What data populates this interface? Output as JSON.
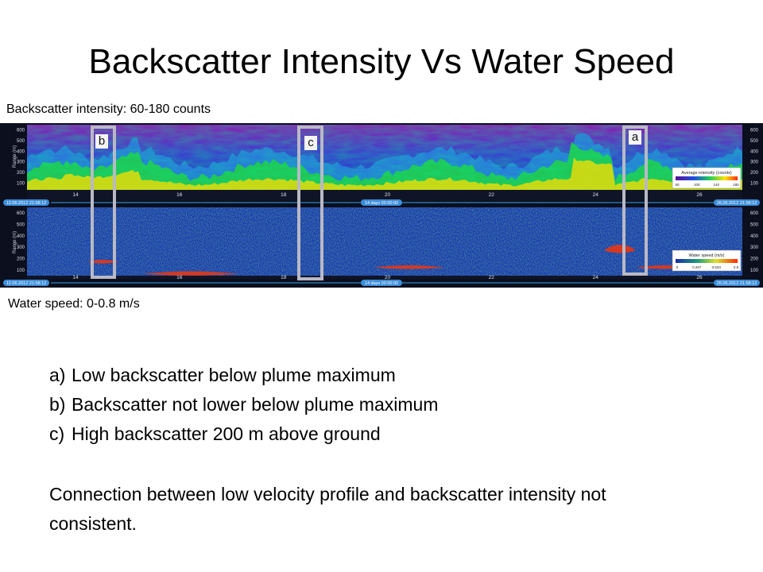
{
  "slide": {
    "title": "Backscatter Intensity Vs Water Speed",
    "caption_top": "Backscatter intensity: 60-180  counts",
    "caption_bottom": "Water speed: 0-0.8 m/s",
    "notes": [
      {
        "letter": "a)",
        "text": "Low backscatter below plume maximum"
      },
      {
        "letter": "b)",
        "text": "Backscatter not lower below plume maximum"
      },
      {
        "letter": "c)",
        "text": "High backscatter 200 m above ground"
      }
    ],
    "conclusion": "Connection between low velocity profile and backscatter intensity not consistent."
  },
  "markers": [
    {
      "label": "b"
    },
    {
      "label": "c"
    },
    {
      "label": "a"
    }
  ],
  "figure": {
    "range_ticks": [
      "600",
      "500",
      "400",
      "300",
      "200",
      "100"
    ],
    "range_axis_label": "Range (m)",
    "day_ticks": [
      "14",
      "16",
      "18",
      "20",
      "22",
      "24",
      "26"
    ],
    "start_date": "12.06.2012 21:58:12",
    "end_date": "26.06.2012 21:58:12",
    "span": "14 days 00:00:00",
    "top_panel": {
      "legend_title": "Average intensity (counts)",
      "legend_ticks": [
        "60",
        "100",
        "140",
        "180"
      ],
      "colors": {
        "background": "#8a1fb0",
        "surface": "#1a40c8",
        "plume": "#22cc44",
        "peak": "#ffdd00",
        "max": "#ff3300"
      }
    },
    "bottom_panel": {
      "legend_title": "Water speed (m/s)",
      "legend_ticks": [
        "0",
        "0.267",
        "0.533",
        "0.8"
      ],
      "colors": {
        "background": "#1a2bb0",
        "mid": "#1d8c66",
        "high": "#d8e22a",
        "max": "#ff3300"
      }
    }
  }
}
